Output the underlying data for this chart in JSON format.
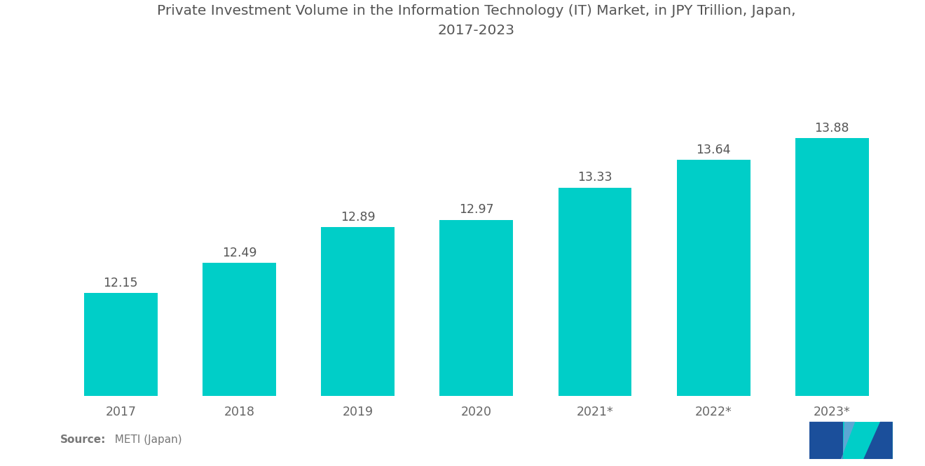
{
  "title": "Private Investment Volume in the Information Technology (IT) Market, in JPY Trillion, Japan,\n2017-2023",
  "categories": [
    "2017",
    "2018",
    "2019",
    "2020",
    "2021*",
    "2022*",
    "2023*"
  ],
  "values": [
    12.15,
    12.49,
    12.89,
    12.97,
    13.33,
    13.64,
    13.88
  ],
  "bar_color": "#00CEC8",
  "background_color": "#ffffff",
  "title_fontsize": 14.5,
  "tick_fontsize": 12.5,
  "value_fontsize": 12.5,
  "source_bold": "Source:",
  "source_normal": "  METI (Japan)",
  "ylim_min": 11.0,
  "ylim_max": 14.8,
  "title_color": "#555555",
  "tick_color": "#666666",
  "value_color": "#555555",
  "source_color": "#777777",
  "bar_width": 0.62
}
